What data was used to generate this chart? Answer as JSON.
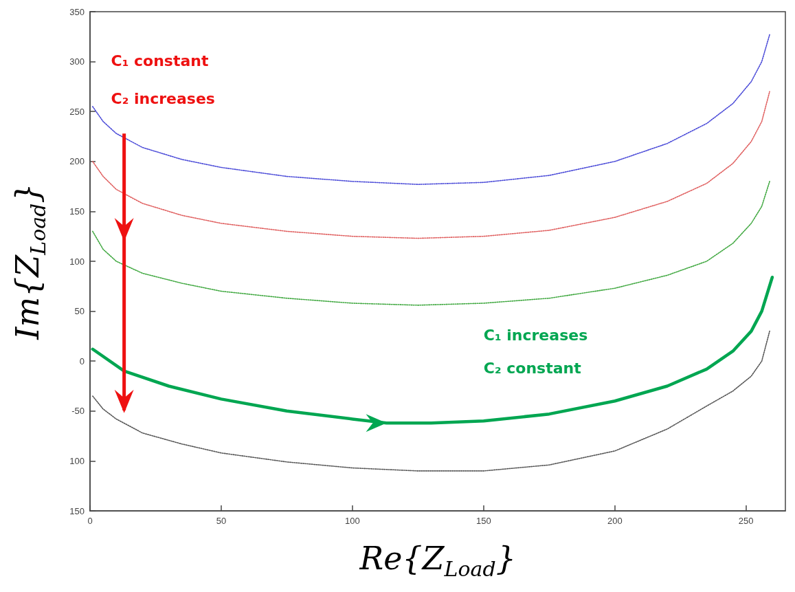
{
  "chart_data": {
    "type": "line",
    "xlabel": "Re{Z$_{Load}$}",
    "ylabel": "Im{Z$_{Load}$}",
    "annotations": [
      "C₁ constant",
      "C₂ increases",
      "C₁ increases",
      "C₂ constant"
    ],
    "xlim": [
      0,
      265
    ],
    "xticks": [
      0,
      50,
      100,
      150,
      200,
      250
    ],
    "ylim": [
      -150,
      350
    ],
    "yticks": [
      350,
      300,
      250,
      200,
      150,
      100,
      50,
      0,
      -50,
      {
        "value": -100,
        "label": "100"
      },
      {
        "value": -150,
        "label": "150"
      }
    ],
    "marker": "none",
    "line_style": "dotted",
    "series": [
      {
        "color": "#4a4ad8",
        "x": [
          1,
          5,
          10,
          20,
          35,
          50,
          75,
          100,
          125,
          150,
          175,
          200,
          220,
          235,
          245,
          252,
          256,
          259
        ],
        "values": [
          255,
          240,
          228,
          214,
          202,
          194,
          185,
          180,
          177,
          179,
          186,
          200,
          218,
          238,
          258,
          280,
          300,
          327
        ]
      },
      {
        "color": "#e06060",
        "x": [
          1,
          5,
          10,
          20,
          35,
          50,
          75,
          100,
          125,
          150,
          175,
          200,
          220,
          235,
          245,
          252,
          256,
          259
        ],
        "values": [
          200,
          185,
          172,
          158,
          146,
          138,
          130,
          125,
          123,
          125,
          131,
          144,
          160,
          178,
          198,
          220,
          240,
          270
        ]
      },
      {
        "color": "#40a840",
        "x": [
          1,
          5,
          10,
          20,
          35,
          50,
          75,
          100,
          125,
          150,
          175,
          200,
          220,
          235,
          245,
          252,
          256,
          259
        ],
        "values": [
          130,
          112,
          100,
          88,
          78,
          70,
          63,
          58,
          56,
          58,
          63,
          73,
          86,
          100,
          118,
          138,
          155,
          180
        ]
      },
      {
        "color": "#555555",
        "x": [
          1,
          5,
          10,
          20,
          35,
          50,
          75,
          100,
          125,
          150,
          175,
          200,
          220,
          235,
          245,
          252,
          256,
          259
        ],
        "values": [
          -35,
          -48,
          -58,
          -72,
          -83,
          -92,
          -101,
          -107,
          -110,
          -110,
          -104,
          -90,
          -68,
          -45,
          -30,
          -15,
          0,
          30
        ]
      },
      {
        "color": "#00a651",
        "line_style": "solid",
        "x": [
          1,
          13,
          30,
          50,
          75,
          100,
          113,
          130,
          150,
          175,
          200,
          220,
          235,
          245,
          252,
          256,
          260
        ],
        "values": [
          12,
          -10,
          -25,
          -38,
          -50,
          -58,
          -62,
          -62,
          -60,
          -53,
          -40,
          -25,
          -8,
          10,
          30,
          50,
          84
        ]
      }
    ]
  }
}
